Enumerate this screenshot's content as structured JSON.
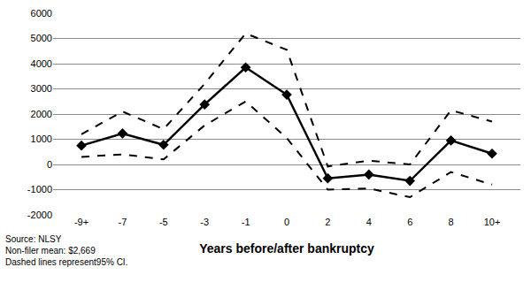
{
  "chart_data": {
    "type": "line",
    "x_label": "Years before/after bankruptcy",
    "categories": [
      "-9+",
      "-7",
      "-5",
      "-3",
      "-1",
      "0",
      "2",
      "4",
      "6",
      "8",
      "10+"
    ],
    "series": [
      {
        "color": "#000000",
        "line_style": "solid",
        "marker": "diamond",
        "values": [
          750,
          1230,
          780,
          2380,
          3850,
          2770,
          -550,
          -400,
          -650,
          950,
          430
        ]
      },
      {
        "color": "#000000",
        "line_style": "dash",
        "marker": "none",
        "values": [
          1200,
          2100,
          1400,
          3200,
          5200,
          4550,
          -80,
          150,
          0,
          2150,
          1700
        ]
      },
      {
        "color": "#000000",
        "line_style": "dash",
        "marker": "none",
        "values": [
          300,
          400,
          200,
          1550,
          2500,
          1050,
          -1000,
          -950,
          -1300,
          -300,
          -800
        ]
      }
    ],
    "ylim": [
      -2000,
      6000
    ],
    "yticks": [
      -2000,
      -1000,
      0,
      1000,
      2000,
      3000,
      4000,
      5000,
      6000
    ],
    "grid": true,
    "annotations": [
      "Source: NLSY",
      "Non-filer mean: $2,669",
      "Dashed lines represent95% CI."
    ]
  }
}
